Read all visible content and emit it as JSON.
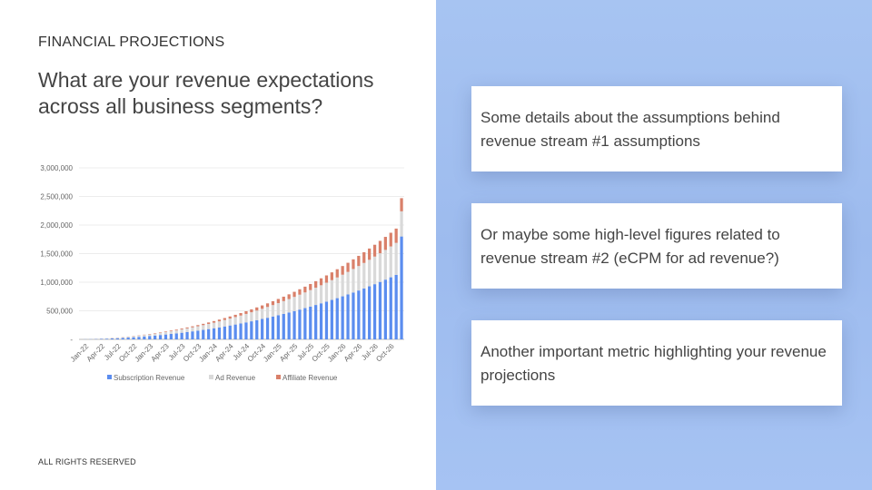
{
  "slide": {
    "section_label": "FINANCIAL PROJECTIONS",
    "headline": "What are your revenue expectations across all business segments?",
    "footer": "ALL RIGHTS RESERVED"
  },
  "cards": [
    {
      "text": "Some details about the assumptions behind revenue stream #1 assumptions"
    },
    {
      "text": "Or maybe some high-level figures related to revenue stream #2 (eCPM for ad revenue?)"
    },
    {
      "text": "Another important metric highlighting your revenue projections"
    }
  ],
  "colors": {
    "subscription": "#5b8def",
    "ad": "#d9d9d9",
    "affiliate": "#d9806a",
    "right_panel": "#a1bff1"
  },
  "chart_data": {
    "type": "bar",
    "stacked": true,
    "title": "",
    "xlabel": "",
    "ylabel": "",
    "ylim": [
      0,
      3000000
    ],
    "yticks": [
      "3,000,000",
      "2,500,000",
      "2,000,000",
      "1,500,000",
      "1,000,000",
      "500,000",
      "-"
    ],
    "x_tick_labels": [
      "Jan-22",
      "Apr-22",
      "Jul-22",
      "Oct-22",
      "Jan-23",
      "Apr-23",
      "Jul-23",
      "Oct-23",
      "Jan-24",
      "Apr-24",
      "Jul-24",
      "Oct-24",
      "Jan-25",
      "Apr-25",
      "Jul-25",
      "Oct-25",
      "Jan-26",
      "Apr-26",
      "Jul-26",
      "Oct-26"
    ],
    "categories": [
      "Jan-22",
      "Feb-22",
      "Mar-22",
      "Apr-22",
      "May-22",
      "Jun-22",
      "Jul-22",
      "Aug-22",
      "Sep-22",
      "Oct-22",
      "Nov-22",
      "Dec-22",
      "Jan-23",
      "Feb-23",
      "Mar-23",
      "Apr-23",
      "May-23",
      "Jun-23",
      "Jul-23",
      "Aug-23",
      "Sep-23",
      "Oct-23",
      "Nov-23",
      "Dec-23",
      "Jan-24",
      "Feb-24",
      "Mar-24",
      "Apr-24",
      "May-24",
      "Jun-24",
      "Jul-24",
      "Aug-24",
      "Sep-24",
      "Oct-24",
      "Nov-24",
      "Dec-24",
      "Jan-25",
      "Feb-25",
      "Mar-25",
      "Apr-25",
      "May-25",
      "Jun-25",
      "Jul-25",
      "Aug-25",
      "Sep-25",
      "Oct-25",
      "Nov-25",
      "Dec-25",
      "Jan-26",
      "Feb-26",
      "Mar-26",
      "Apr-26",
      "May-26",
      "Jun-26",
      "Jul-26",
      "Aug-26",
      "Sep-26",
      "Oct-26",
      "Nov-26",
      "Dec-26"
    ],
    "series": [
      {
        "name": "Subscription Revenue",
        "values": [
          2000,
          4000,
          6000,
          9000,
          12000,
          16000,
          20000,
          25000,
          31000,
          37000,
          44000,
          51000,
          59000,
          67000,
          76000,
          85000,
          95000,
          105000,
          116000,
          128000,
          140000,
          153000,
          166000,
          180000,
          195000,
          210000,
          226000,
          243000,
          260000,
          278000,
          297000,
          316000,
          336000,
          357000,
          378000,
          400000,
          423000,
          446000,
          470000,
          495000,
          521000,
          547000,
          574000,
          602000,
          631000,
          660000,
          690000,
          721000,
          753000,
          786000,
          820000,
          855000,
          891000,
          928000,
          966000,
          1005000,
          1045000,
          1086000,
          1128000,
          1800000
        ]
      },
      {
        "name": "Ad Revenue",
        "values": [
          1000,
          2000,
          3000,
          4000,
          6000,
          8000,
          10000,
          12000,
          15000,
          18000,
          21000,
          25000,
          29000,
          33000,
          37000,
          42000,
          47000,
          52000,
          58000,
          64000,
          70000,
          76000,
          83000,
          90000,
          97000,
          105000,
          113000,
          121000,
          130000,
          139000,
          148000,
          158000,
          168000,
          178000,
          189000,
          200000,
          211000,
          223000,
          235000,
          248000,
          261000,
          274000,
          288000,
          302000,
          316000,
          331000,
          346000,
          362000,
          378000,
          394000,
          411000,
          428000,
          446000,
          464000,
          482000,
          501000,
          520000,
          540000,
          560000,
          440000
        ]
      },
      {
        "name": "Affiliate Revenue",
        "values": [
          0,
          0,
          1000,
          1000,
          1000,
          2000,
          2000,
          3000,
          3000,
          4000,
          5000,
          6000,
          7000,
          8000,
          9000,
          10000,
          12000,
          13000,
          15000,
          17000,
          19000,
          21000,
          23000,
          26000,
          28000,
          31000,
          34000,
          37000,
          40000,
          43000,
          47000,
          51000,
          55000,
          59000,
          63000,
          68000,
          73000,
          78000,
          83000,
          89000,
          95000,
          101000,
          107000,
          114000,
          121000,
          128000,
          136000,
          144000,
          152000,
          160000,
          169000,
          178000,
          187000,
          197000,
          207000,
          217000,
          228000,
          239000,
          250000,
          230000
        ]
      }
    ],
    "legend": "bottom",
    "grid": true
  }
}
